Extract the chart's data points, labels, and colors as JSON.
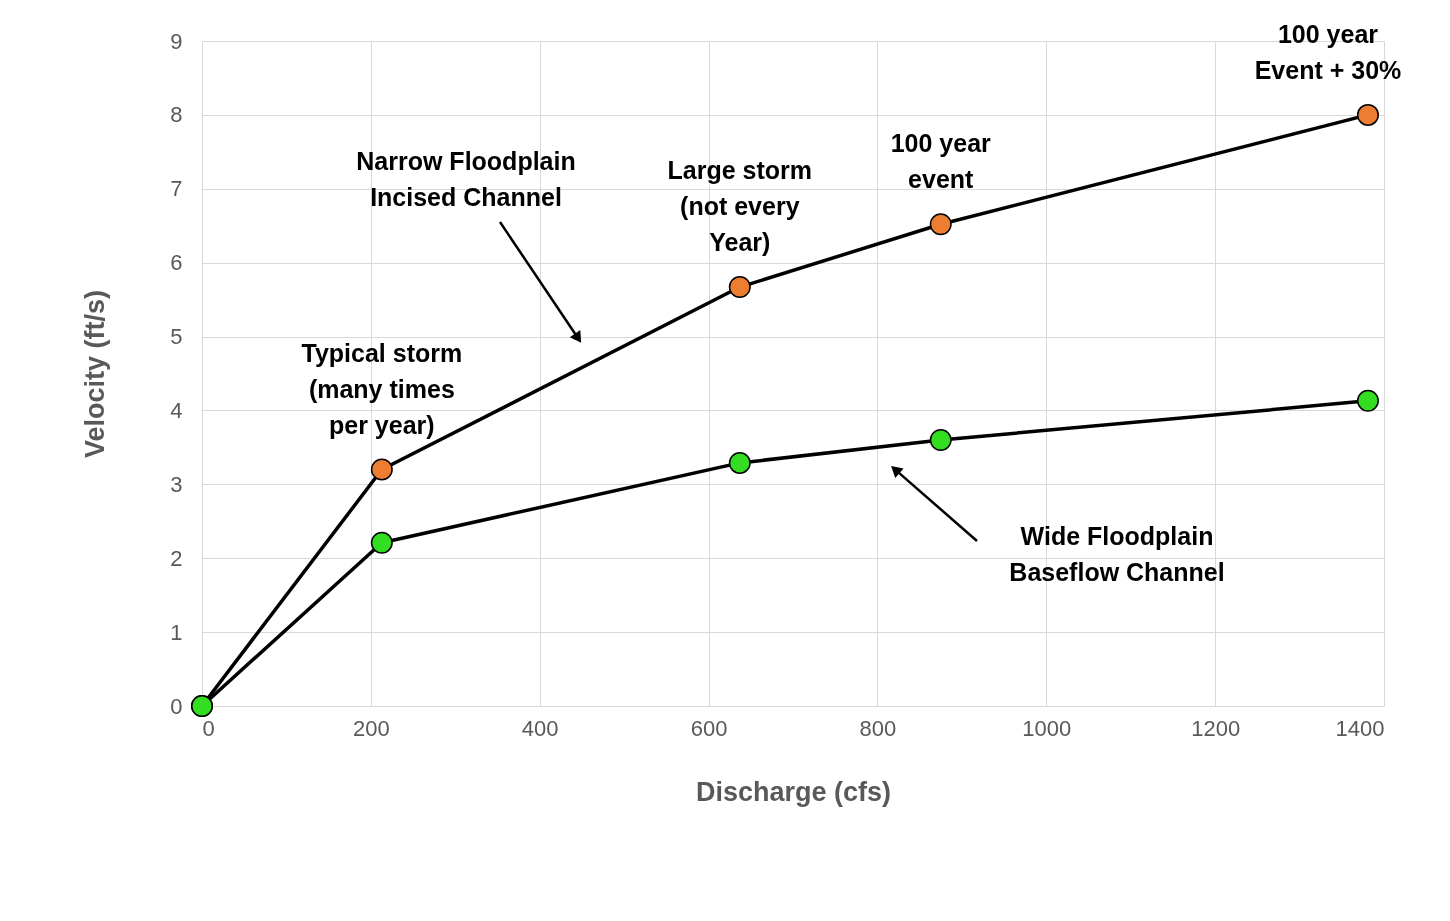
{
  "chart_data": {
    "type": "line",
    "xlabel": "Discharge (cfs)",
    "ylabel": "Velocity (ft/s)",
    "xlim": [
      0,
      1400
    ],
    "xticks": [
      0,
      200,
      400,
      600,
      800,
      1000,
      1200,
      1400
    ],
    "ylim": [
      0,
      9
    ],
    "yticks": [
      0,
      1,
      2,
      3,
      4,
      5,
      6,
      7,
      8,
      9
    ],
    "grid": true,
    "marker": "circle",
    "line_style": "solid",
    "series": [
      {
        "color": "#ed7d31",
        "x": [
          0,
          213,
          637,
          875,
          1381
        ],
        "values": [
          0,
          3.2,
          5.67,
          6.52,
          8.0
        ]
      },
      {
        "color": "#33dd22",
        "x": [
          0,
          213,
          637,
          875,
          1381
        ],
        "values": [
          0,
          2.21,
          3.29,
          3.6,
          4.13
        ]
      }
    ],
    "annotations": [
      {
        "text": "Typical storm\n(many times\nper year)",
        "x": 213,
        "y": 3.2
      },
      {
        "text": "Large storm\n(not every\nYear)",
        "x": 637,
        "y": 5.67
      },
      {
        "text": "100 year\nevent",
        "x": 875,
        "y": 6.52
      },
      {
        "text": "100 year\nEvent + 30%",
        "x": 1381,
        "y": 8.0
      },
      "Narrow Floodplain\nIncised Channel",
      "Wide Floodplain\nBaseflow Channel"
    ]
  }
}
